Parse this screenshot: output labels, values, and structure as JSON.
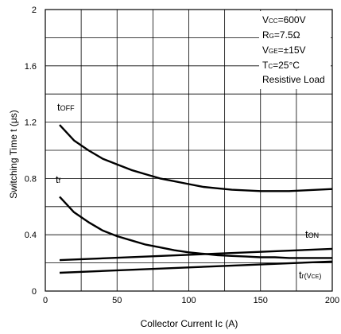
{
  "chart_data": {
    "type": "line",
    "xlabel": "Collector Current Ic  (A)",
    "ylabel": "Switching Time t  (μs)",
    "xlim": [
      0,
      200
    ],
    "ylim": [
      0,
      2
    ],
    "x_ticks": [
      "0",
      "50",
      "100",
      "150",
      "200"
    ],
    "y_ticks": [
      "0",
      "0.4",
      "0.8",
      "1.2",
      "1.6",
      "2"
    ],
    "grid": true,
    "conditions": [
      "VCC=600V",
      "RG=7.5Ω",
      "VGE=±15V",
      "TC=25°C",
      "Resistive Load"
    ],
    "series": [
      {
        "name": "tOFF",
        "x": [
          10,
          20,
          30,
          40,
          50,
          60,
          70,
          80,
          90,
          100,
          110,
          120,
          130,
          140,
          150,
          160,
          170,
          180,
          190,
          200
        ],
        "y": [
          1.18,
          1.07,
          1.0,
          0.94,
          0.9,
          0.86,
          0.83,
          0.8,
          0.78,
          0.76,
          0.74,
          0.73,
          0.72,
          0.715,
          0.71,
          0.71,
          0.71,
          0.715,
          0.72,
          0.725
        ]
      },
      {
        "name": "tf",
        "x": [
          10,
          20,
          30,
          40,
          50,
          60,
          70,
          80,
          90,
          100,
          110,
          120,
          130,
          140,
          150,
          160,
          170,
          180,
          190,
          200
        ],
        "y": [
          0.67,
          0.56,
          0.49,
          0.43,
          0.39,
          0.36,
          0.33,
          0.31,
          0.29,
          0.275,
          0.265,
          0.255,
          0.25,
          0.245,
          0.24,
          0.24,
          0.235,
          0.235,
          0.235,
          0.235
        ]
      },
      {
        "name": "tON",
        "x": [
          10,
          200
        ],
        "y": [
          0.22,
          0.3
        ]
      },
      {
        "name": "tr(VCE)",
        "x": [
          10,
          200
        ],
        "y": [
          0.13,
          0.21
        ]
      }
    ]
  }
}
